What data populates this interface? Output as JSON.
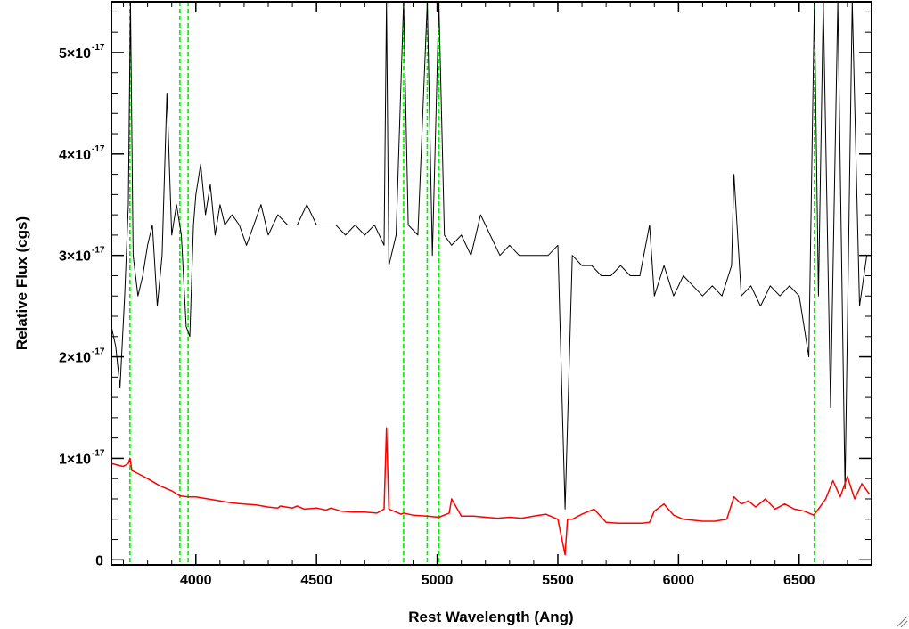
{
  "chart_data": {
    "type": "line",
    "xlabel": "Rest Wavelength (Ang)",
    "ylabel": "Relative Flux (cgs)",
    "xlim": [
      3650,
      6800
    ],
    "ylim": [
      -0.05,
      5.5
    ],
    "y_unit_multiplier": "1e-17",
    "grid": false,
    "legend": "none",
    "x_ticks": [
      {
        "value": 4000,
        "label": "4000"
      },
      {
        "value": 4500,
        "label": "4500"
      },
      {
        "value": 5000,
        "label": "5000"
      },
      {
        "value": 5500,
        "label": "5500"
      },
      {
        "value": 6000,
        "label": "6000"
      },
      {
        "value": 6500,
        "label": "6500"
      }
    ],
    "y_ticks": [
      {
        "value": 0,
        "mantissa": "0",
        "exponent": ""
      },
      {
        "value": 1,
        "mantissa": "1×10",
        "exponent": "-17"
      },
      {
        "value": 2,
        "mantissa": "2×10",
        "exponent": "-17"
      },
      {
        "value": 3,
        "mantissa": "3×10",
        "exponent": "-17"
      },
      {
        "value": 4,
        "mantissa": "4×10",
        "exponent": "-17"
      },
      {
        "value": 5,
        "mantissa": "5×10",
        "exponent": "-17"
      }
    ],
    "colors": {
      "observed": "#000000",
      "model": "#ff0000",
      "lines": "#00ee00"
    },
    "reference_lines": [
      3727,
      3934,
      3968,
      4861,
      4959,
      5007,
      6563
    ],
    "series": [
      {
        "color": "#000000",
        "x": [
          3650,
          3668,
          3686,
          3705,
          3720,
          3729,
          3740,
          3760,
          3780,
          3800,
          3820,
          3840,
          3860,
          3880,
          3900,
          3920,
          3940,
          3960,
          3975,
          3990,
          4000,
          4020,
          4040,
          4060,
          4080,
          4100,
          4120,
          4150,
          4180,
          4210,
          4240,
          4270,
          4300,
          4340,
          4380,
          4420,
          4460,
          4500,
          4540,
          4580,
          4620,
          4660,
          4700,
          4740,
          4780,
          4790,
          4800,
          4830,
          4861,
          4880,
          4920,
          4959,
          4980,
          5007,
          5030,
          5060,
          5100,
          5140,
          5180,
          5220,
          5260,
          5300,
          5340,
          5380,
          5420,
          5460,
          5500,
          5530,
          5560,
          5600,
          5640,
          5680,
          5720,
          5760,
          5800,
          5840,
          5880,
          5900,
          5940,
          5980,
          6020,
          6060,
          6100,
          6140,
          6180,
          6220,
          6230,
          6260,
          6300,
          6340,
          6380,
          6420,
          6460,
          6500,
          6540,
          6563,
          6580,
          6600,
          6630,
          6660,
          6690,
          6720,
          6750,
          6780
        ],
        "y": [
          2.3,
          2.1,
          1.7,
          2.6,
          3.5,
          5.5,
          3.0,
          2.6,
          2.8,
          3.1,
          3.3,
          2.5,
          3.0,
          4.6,
          3.2,
          3.5,
          3.2,
          2.3,
          2.2,
          3.3,
          3.6,
          3.9,
          3.4,
          3.7,
          3.2,
          3.5,
          3.3,
          3.4,
          3.3,
          3.1,
          3.3,
          3.5,
          3.2,
          3.4,
          3.3,
          3.3,
          3.5,
          3.3,
          3.3,
          3.3,
          3.2,
          3.3,
          3.2,
          3.3,
          3.1,
          5.5,
          2.9,
          3.2,
          5.5,
          3.3,
          3.2,
          5.5,
          3.0,
          5.5,
          3.2,
          3.1,
          3.2,
          3.0,
          3.4,
          3.2,
          3.0,
          3.1,
          3.0,
          3.0,
          3.0,
          3.0,
          3.1,
          0.5,
          3.0,
          2.9,
          2.9,
          2.8,
          2.8,
          2.9,
          2.8,
          2.8,
          3.3,
          2.6,
          2.9,
          2.6,
          2.8,
          2.7,
          2.6,
          2.7,
          2.6,
          2.9,
          3.8,
          2.6,
          2.7,
          2.5,
          2.7,
          2.6,
          2.7,
          2.6,
          2.0,
          5.5,
          2.6,
          5.5,
          1.5,
          5.5,
          0.7,
          5.5,
          2.5,
          3.0
        ]
      },
      {
        "color": "#ff0000",
        "x": [
          3650,
          3680,
          3700,
          3720,
          3727,
          3735,
          3760,
          3800,
          3850,
          3900,
          3934,
          3968,
          4000,
          4050,
          4100,
          4150,
          4200,
          4250,
          4300,
          4340,
          4350,
          4400,
          4420,
          4450,
          4500,
          4540,
          4560,
          4600,
          4650,
          4700,
          4750,
          4780,
          4790,
          4800,
          4850,
          4861,
          4900,
          4959,
          5007,
          5050,
          5060,
          5100,
          5150,
          5200,
          5250,
          5300,
          5350,
          5400,
          5450,
          5500,
          5530,
          5540,
          5560,
          5600,
          5650,
          5700,
          5750,
          5800,
          5850,
          5880,
          5900,
          5940,
          5980,
          6020,
          6060,
          6100,
          6150,
          6200,
          6230,
          6260,
          6290,
          6320,
          6360,
          6400,
          6440,
          6480,
          6520,
          6560,
          6580,
          6610,
          6640,
          6670,
          6700,
          6730,
          6760,
          6790
        ],
        "y": [
          0.95,
          0.93,
          0.92,
          0.95,
          1.0,
          0.88,
          0.85,
          0.8,
          0.73,
          0.68,
          0.63,
          0.62,
          0.62,
          0.6,
          0.58,
          0.56,
          0.55,
          0.54,
          0.52,
          0.51,
          0.53,
          0.51,
          0.53,
          0.5,
          0.51,
          0.49,
          0.51,
          0.48,
          0.47,
          0.47,
          0.46,
          0.5,
          1.3,
          0.5,
          0.45,
          0.46,
          0.44,
          0.43,
          0.42,
          0.46,
          0.6,
          0.43,
          0.43,
          0.42,
          0.41,
          0.42,
          0.41,
          0.43,
          0.45,
          0.4,
          0.05,
          0.4,
          0.4,
          0.45,
          0.5,
          0.37,
          0.36,
          0.36,
          0.36,
          0.37,
          0.48,
          0.55,
          0.44,
          0.4,
          0.39,
          0.38,
          0.38,
          0.4,
          0.62,
          0.55,
          0.58,
          0.52,
          0.6,
          0.5,
          0.55,
          0.5,
          0.48,
          0.44,
          0.5,
          0.6,
          0.78,
          0.62,
          0.82,
          0.6,
          0.75,
          0.65
        ]
      }
    ]
  }
}
